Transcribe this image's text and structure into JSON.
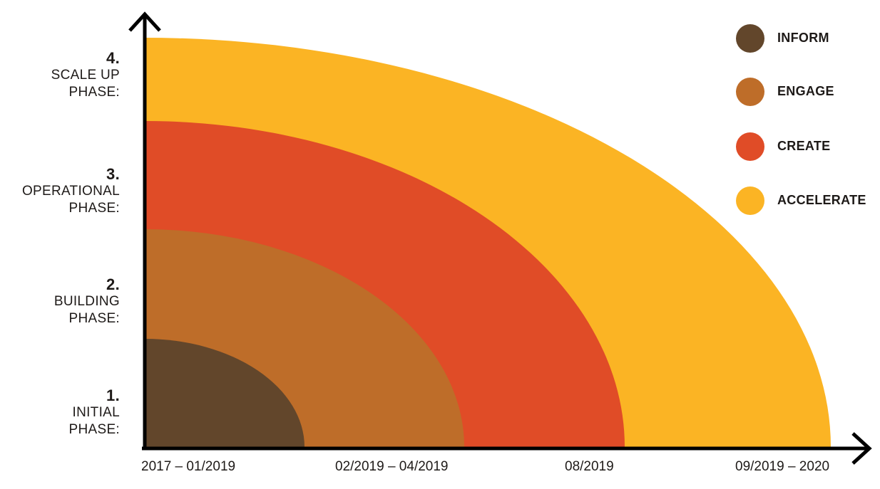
{
  "colors": {
    "inform": "#62462b",
    "engage": "#be6d29",
    "create": "#e04c27",
    "accelerate": "#fbb424",
    "axis": "#000000"
  },
  "phases": [
    {
      "num": "4.",
      "line1": "SCALE UP",
      "line2": "PHASE:"
    },
    {
      "num": "3.",
      "line1": "OPERATIONAL",
      "line2": "PHASE:"
    },
    {
      "num": "2.",
      "line1": "BUILDING",
      "line2": "PHASE:"
    },
    {
      "num": "1.",
      "line1": "INITIAL",
      "line2": "PHASE:"
    }
  ],
  "timeline": [
    "2017 – 01/2019",
    "02/2019 – 04/2019",
    "08/2019",
    "09/2019 – 2020"
  ],
  "legend": [
    {
      "label": "INFORM",
      "color": "#62462b"
    },
    {
      "label": "ENGAGE",
      "color": "#be6d29"
    },
    {
      "label": "CREATE",
      "color": "#e04c27"
    },
    {
      "label": "ACCELERATE",
      "color": "#fbb424"
    }
  ]
}
